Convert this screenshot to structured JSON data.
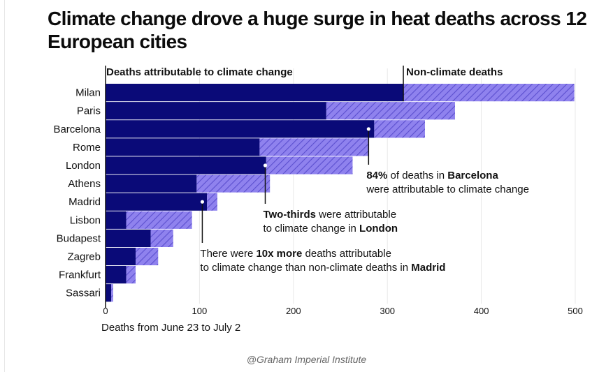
{
  "title": "Climate change drove a huge surge in heat deaths across 12 European cities",
  "credit": "@Graham Imperial Institute",
  "colors": {
    "climate": "#0a0a78",
    "non_climate": "#8f82ee",
    "hatch": "#5b4fcf",
    "grid": "#e8e8e8",
    "text": "#111111"
  },
  "chart_data": {
    "type": "bar",
    "orientation": "horizontal",
    "stacked": true,
    "categories": [
      "Milan",
      "Paris",
      "Barcelona",
      "Rome",
      "London",
      "Athens",
      "Madrid",
      "Lisbon",
      "Budapest",
      "Zagreb",
      "Frankfurt",
      "Sassari"
    ],
    "series": [
      {
        "name": "Deaths attributable to climate change",
        "values": [
          317,
          235,
          286,
          164,
          171,
          97,
          108,
          22,
          48,
          32,
          22,
          6
        ]
      },
      {
        "name": "Non-climate deaths",
        "values": [
          182,
          137,
          54,
          116,
          92,
          78,
          11,
          70,
          24,
          24,
          10,
          2
        ]
      }
    ],
    "xlabel": "Deaths from June 23 to July 2",
    "xlim": [
      0,
      500
    ],
    "xticks": [
      0,
      100,
      200,
      300,
      400,
      500
    ],
    "grid": true,
    "legend_placement": "top",
    "annotations": [
      {
        "category": "Barcelona",
        "at": 280,
        "lines": [
          [
            {
              "t": "84%",
              "b": true
            },
            {
              "t": " of deaths in ",
              "b": false
            },
            {
              "t": "Barcelona",
              "b": true
            }
          ],
          [
            {
              "t": "were attributable to climate change",
              "b": false
            }
          ]
        ]
      },
      {
        "category": "London",
        "at": 170,
        "lines": [
          [
            {
              "t": "Two-thirds",
              "b": true
            },
            {
              "t": " were attributable",
              "b": false
            }
          ],
          [
            {
              "t": "to climate change in ",
              "b": false
            },
            {
              "t": "London",
              "b": true
            }
          ]
        ]
      },
      {
        "category": "Madrid",
        "at": 103,
        "lines": [
          [
            {
              "t": "There were ",
              "b": false
            },
            {
              "t": "10x more",
              "b": true
            },
            {
              "t": " deaths attributable",
              "b": false
            }
          ],
          [
            {
              "t": "to climate change than non-climate deaths in ",
              "b": false
            },
            {
              "t": "Madrid",
              "b": true
            }
          ]
        ]
      }
    ]
  }
}
